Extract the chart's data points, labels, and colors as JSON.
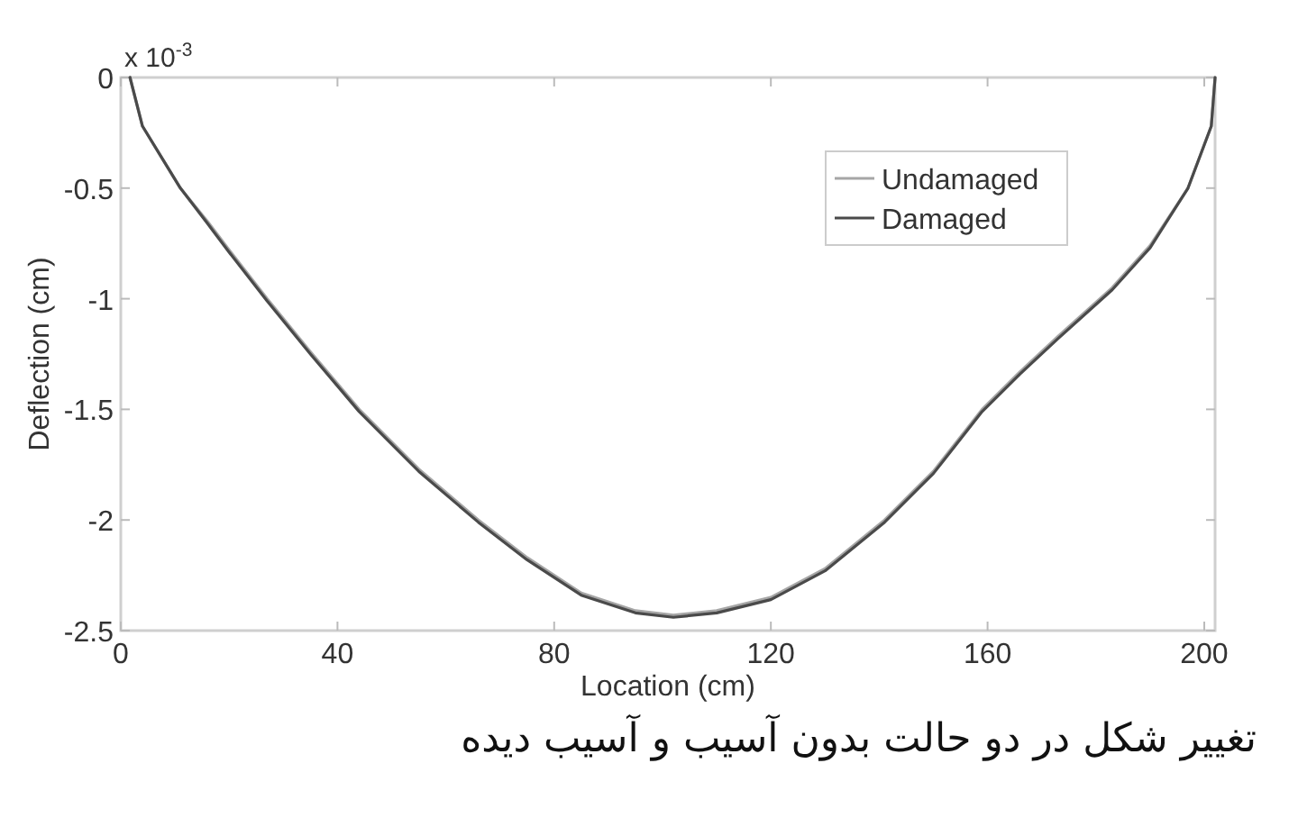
{
  "chart_data": {
    "type": "line",
    "xlabel": "Location (cm)",
    "ylabel": "Deflection (cm)",
    "annotations": [
      "x 10$^{-3}$",
      "تغییر شکل در دو حالت بدون آسیب و آسیب دیده"
    ],
    "xlim": [
      0,
      202
    ],
    "ylim": [
      -2.5,
      0
    ],
    "xticks": [
      0,
      40,
      80,
      120,
      160,
      200
    ],
    "yticks": [
      -2.5,
      -2,
      -1.5,
      -1,
      -0.5,
      0
    ],
    "legend": "top right",
    "grid": false,
    "marker": "none",
    "line_style": "solid",
    "x": [
      1.7,
      4,
      8,
      11,
      16,
      20,
      27,
      35,
      44,
      55,
      66,
      75,
      85,
      95,
      102,
      110,
      120,
      130,
      141,
      150,
      159,
      166,
      173,
      183,
      190,
      197,
      201.3,
      202
    ],
    "series": [
      {
        "name": "Undamaged",
        "color": "#a6a6a6",
        "values": [
          0,
          -0.22,
          -0.38,
          -0.5,
          -0.65,
          -0.78,
          -1.0,
          -1.24,
          -1.5,
          -1.77,
          -2.0,
          -2.17,
          -2.33,
          -2.41,
          -2.43,
          -2.41,
          -2.35,
          -2.22,
          -2.0,
          -1.78,
          -1.5,
          -1.33,
          -1.17,
          -0.95,
          -0.76,
          -0.5,
          -0.22,
          0
        ]
      },
      {
        "name": "Damaged",
        "color": "#4a4a4a",
        "values": [
          0,
          -0.22,
          -0.38,
          -0.5,
          -0.66,
          -0.79,
          -1.01,
          -1.25,
          -1.51,
          -1.78,
          -2.01,
          -2.18,
          -2.34,
          -2.42,
          -2.44,
          -2.42,
          -2.36,
          -2.23,
          -2.01,
          -1.79,
          -1.51,
          -1.34,
          -1.18,
          -0.96,
          -0.77,
          -0.5,
          -0.22,
          0
        ]
      }
    ]
  }
}
